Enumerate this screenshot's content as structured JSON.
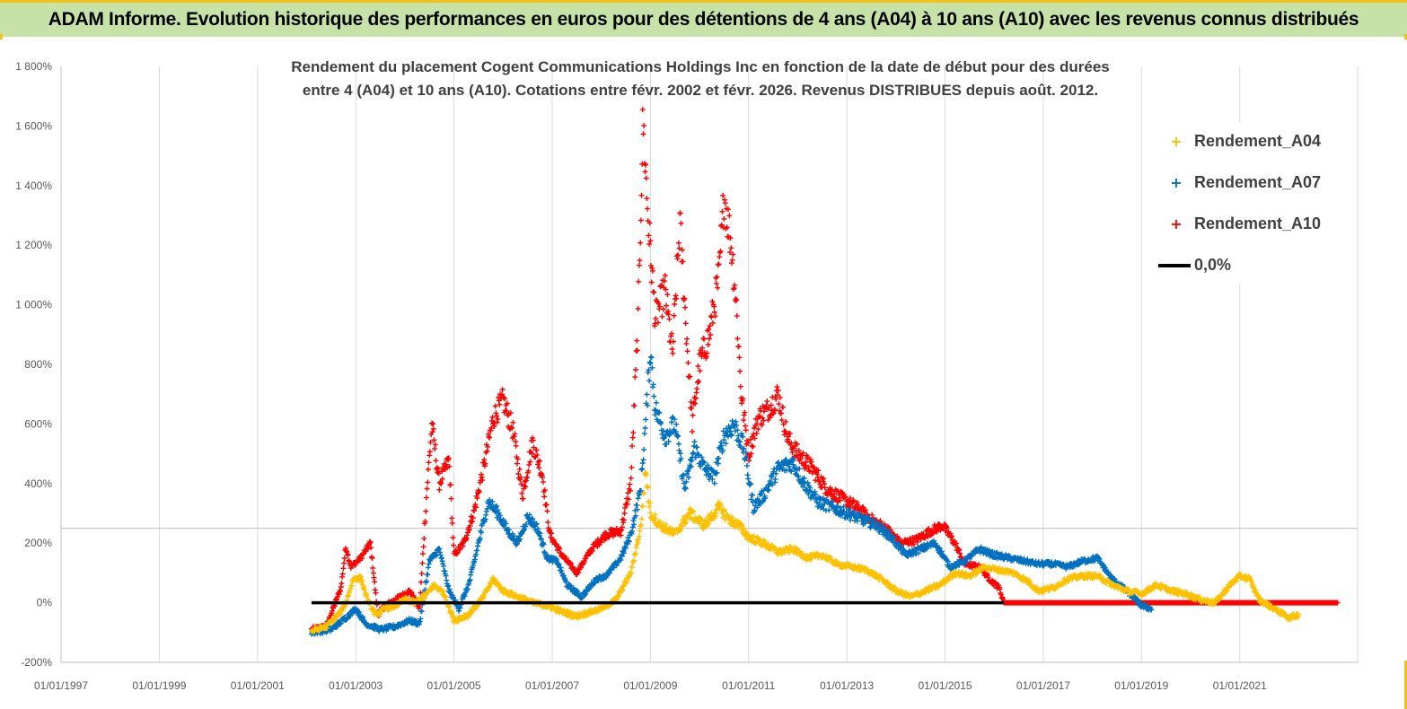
{
  "header": {
    "title": "ADAM Informe. Evolution historique des performances en euros pour des détentions de 4 ans (A04) à 10 ans (A10) avec les revenus connus distribués"
  },
  "colors": {
    "banner_bg": "#c6e2a6",
    "accent": "#f1c21b",
    "a04": "#ffc000",
    "a07": "#0070c0",
    "a10": "#ff0000",
    "zero": "#000000",
    "grid": "#d9d9d9"
  },
  "chart_data": {
    "type": "scatter",
    "title_lines": [
      "Rendement du placement Cogent Communications Holdings Inc en  fonction de la date de début pour des durées",
      "entre 4 (A04) et 10 ans (A10).  Cotations entre févr. 2002 et févr. 2026.  Revenus DISTRIBUES depuis août. 2012."
    ],
    "y_axis": {
      "min": -200,
      "max": 1800,
      "step": 200,
      "tick_labels": [
        "-200%",
        "0%",
        "200%",
        "400%",
        "600%",
        "800%",
        "1 000%",
        "1 200%",
        "1 400%",
        "1 600%",
        "1 800%"
      ]
    },
    "x_axis": {
      "min": 1997,
      "max": 2023.4,
      "tick_values": [
        1997,
        1999,
        2001,
        2003,
        2005,
        2007,
        2009,
        2011,
        2013,
        2015,
        2017,
        2019,
        2021
      ],
      "tick_labels": [
        "01/01/1997",
        "01/01/1999",
        "01/01/2001",
        "01/01/2003",
        "01/01/2005",
        "01/01/2007",
        "01/01/2009",
        "01/01/2011",
        "01/01/2013",
        "01/01/2015",
        "01/01/2017",
        "01/01/2019",
        "01/01/2021"
      ]
    },
    "legend": {
      "position": "top-right",
      "items": [
        {
          "label": "Rendement_A04",
          "marker": "+"
        },
        {
          "label": "Rendement_A07",
          "marker": "+"
        },
        {
          "label": "Rendement_A10",
          "marker": "+"
        },
        {
          "label": "0,0%",
          "marker": "line"
        }
      ]
    },
    "series": [
      {
        "name": "Rendement_A04",
        "x_range": [
          2002.1,
          2022.2
        ],
        "points": [
          [
            2002.1,
            -95
          ],
          [
            2002.4,
            -80
          ],
          [
            2002.7,
            -30
          ],
          [
            2002.8,
            0
          ],
          [
            2002.95,
            80
          ],
          [
            2003.1,
            85
          ],
          [
            2003.25,
            5
          ],
          [
            2003.4,
            -40
          ],
          [
            2003.6,
            -20
          ],
          [
            2003.8,
            -10
          ],
          [
            2004.0,
            10
          ],
          [
            2004.2,
            0
          ],
          [
            2004.4,
            20
          ],
          [
            2004.6,
            60
          ],
          [
            2004.8,
            30
          ],
          [
            2005.0,
            -60
          ],
          [
            2005.3,
            -40
          ],
          [
            2005.6,
            20
          ],
          [
            2005.8,
            80
          ],
          [
            2006.0,
            40
          ],
          [
            2006.3,
            20
          ],
          [
            2006.6,
            0
          ],
          [
            2006.9,
            -10
          ],
          [
            2007.2,
            -30
          ],
          [
            2007.5,
            -45
          ],
          [
            2007.8,
            -30
          ],
          [
            2008.0,
            -20
          ],
          [
            2008.3,
            10
          ],
          [
            2008.6,
            100
          ],
          [
            2008.8,
            250
          ],
          [
            2008.9,
            450
          ],
          [
            2009.0,
            300
          ],
          [
            2009.2,
            260
          ],
          [
            2009.5,
            230
          ],
          [
            2009.8,
            300
          ],
          [
            2010.1,
            260
          ],
          [
            2010.4,
            320
          ],
          [
            2010.6,
            280
          ],
          [
            2010.8,
            260
          ],
          [
            2011.0,
            220
          ],
          [
            2011.3,
            200
          ],
          [
            2011.6,
            170
          ],
          [
            2011.9,
            180
          ],
          [
            2012.2,
            150
          ],
          [
            2012.5,
            160
          ],
          [
            2012.8,
            130
          ],
          [
            2013.1,
            120
          ],
          [
            2013.4,
            110
          ],
          [
            2013.7,
            80
          ],
          [
            2014.0,
            40
          ],
          [
            2014.3,
            20
          ],
          [
            2014.6,
            40
          ],
          [
            2014.9,
            60
          ],
          [
            2015.2,
            100
          ],
          [
            2015.5,
            90
          ],
          [
            2015.8,
            120
          ],
          [
            2016.1,
            110
          ],
          [
            2016.4,
            100
          ],
          [
            2016.7,
            70
          ],
          [
            2016.9,
            40
          ],
          [
            2017.2,
            50
          ],
          [
            2017.5,
            80
          ],
          [
            2017.8,
            90
          ],
          [
            2018.1,
            90
          ],
          [
            2018.4,
            60
          ],
          [
            2018.7,
            40
          ],
          [
            2019.0,
            30
          ],
          [
            2019.3,
            60
          ],
          [
            2019.6,
            40
          ],
          [
            2019.9,
            30
          ],
          [
            2020.2,
            10
          ],
          [
            2020.5,
            0
          ],
          [
            2020.8,
            60
          ],
          [
            2021.0,
            90
          ],
          [
            2021.2,
            80
          ],
          [
            2021.4,
            10
          ],
          [
            2021.7,
            -20
          ],
          [
            2022.0,
            -50
          ],
          [
            2022.2,
            -40
          ]
        ]
      },
      {
        "name": "Rendement_A07",
        "x_range": [
          2002.1,
          2019.2
        ],
        "points": [
          [
            2002.1,
            -100
          ],
          [
            2002.5,
            -90
          ],
          [
            2002.8,
            -50
          ],
          [
            2003.0,
            -20
          ],
          [
            2003.2,
            -70
          ],
          [
            2003.5,
            -90
          ],
          [
            2003.8,
            -80
          ],
          [
            2004.1,
            -60
          ],
          [
            2004.3,
            -70
          ],
          [
            2004.5,
            140
          ],
          [
            2004.7,
            180
          ],
          [
            2004.9,
            40
          ],
          [
            2005.1,
            -20
          ],
          [
            2005.3,
            60
          ],
          [
            2005.5,
            200
          ],
          [
            2005.7,
            340
          ],
          [
            2005.9,
            300
          ],
          [
            2006.1,
            240
          ],
          [
            2006.3,
            200
          ],
          [
            2006.5,
            290
          ],
          [
            2006.7,
            250
          ],
          [
            2006.9,
            150
          ],
          [
            2007.1,
            140
          ],
          [
            2007.3,
            60
          ],
          [
            2007.6,
            20
          ],
          [
            2007.9,
            80
          ],
          [
            2008.1,
            90
          ],
          [
            2008.4,
            150
          ],
          [
            2008.6,
            230
          ],
          [
            2008.8,
            380
          ],
          [
            2008.9,
            600
          ],
          [
            2009.0,
            850
          ],
          [
            2009.1,
            650
          ],
          [
            2009.3,
            560
          ],
          [
            2009.5,
            600
          ],
          [
            2009.7,
            380
          ],
          [
            2009.9,
            520
          ],
          [
            2010.1,
            450
          ],
          [
            2010.3,
            420
          ],
          [
            2010.5,
            560
          ],
          [
            2010.7,
            600
          ],
          [
            2010.9,
            520
          ],
          [
            2011.1,
            320
          ],
          [
            2011.3,
            360
          ],
          [
            2011.6,
            450
          ],
          [
            2011.9,
            470
          ],
          [
            2012.1,
            410
          ],
          [
            2012.4,
            340
          ],
          [
            2012.7,
            320
          ],
          [
            2013.0,
            300
          ],
          [
            2013.3,
            280
          ],
          [
            2013.6,
            260
          ],
          [
            2013.9,
            220
          ],
          [
            2014.2,
            160
          ],
          [
            2014.5,
            180
          ],
          [
            2014.8,
            200
          ],
          [
            2015.1,
            120
          ],
          [
            2015.4,
            140
          ],
          [
            2015.7,
            180
          ],
          [
            2016.0,
            160
          ],
          [
            2016.3,
            150
          ],
          [
            2016.6,
            140
          ],
          [
            2016.9,
            130
          ],
          [
            2017.2,
            130
          ],
          [
            2017.5,
            120
          ],
          [
            2017.8,
            140
          ],
          [
            2018.1,
            150
          ],
          [
            2018.4,
            80
          ],
          [
            2018.7,
            40
          ],
          [
            2019.0,
            -10
          ],
          [
            2019.2,
            -20
          ]
        ]
      },
      {
        "name": "Rendement_A10",
        "x_range": [
          2002.1,
          2023.0
        ],
        "points": [
          [
            2002.1,
            -90
          ],
          [
            2002.4,
            -80
          ],
          [
            2002.7,
            50
          ],
          [
            2002.8,
            190
          ],
          [
            2002.9,
            120
          ],
          [
            2003.1,
            150
          ],
          [
            2003.3,
            200
          ],
          [
            2003.45,
            -40
          ],
          [
            2003.6,
            -10
          ],
          [
            2003.9,
            20
          ],
          [
            2004.1,
            40
          ],
          [
            2004.3,
            -20
          ],
          [
            2004.45,
            380
          ],
          [
            2004.55,
            600
          ],
          [
            2004.7,
            400
          ],
          [
            2004.9,
            480
          ],
          [
            2005.0,
            160
          ],
          [
            2005.2,
            200
          ],
          [
            2005.4,
            300
          ],
          [
            2005.6,
            450
          ],
          [
            2005.8,
            620
          ],
          [
            2006.0,
            680
          ],
          [
            2006.2,
            580
          ],
          [
            2006.4,
            360
          ],
          [
            2006.6,
            540
          ],
          [
            2006.8,
            430
          ],
          [
            2006.95,
            230
          ],
          [
            2007.2,
            160
          ],
          [
            2007.5,
            100
          ],
          [
            2007.8,
            180
          ],
          [
            2008.1,
            230
          ],
          [
            2008.4,
            240
          ],
          [
            2008.6,
            400
          ],
          [
            2008.75,
            950
          ],
          [
            2008.85,
            1620
          ],
          [
            2008.95,
            1300
          ],
          [
            2009.1,
            950
          ],
          [
            2009.3,
            1050
          ],
          [
            2009.45,
            830
          ],
          [
            2009.6,
            1280
          ],
          [
            2009.7,
            1000
          ],
          [
            2009.85,
            600
          ],
          [
            2010.0,
            800
          ],
          [
            2010.2,
            900
          ],
          [
            2010.4,
            1100
          ],
          [
            2010.5,
            1370
          ],
          [
            2010.65,
            1200
          ],
          [
            2010.75,
            1000
          ],
          [
            2010.85,
            700
          ],
          [
            2011.0,
            500
          ],
          [
            2011.2,
            620
          ],
          [
            2011.4,
            650
          ],
          [
            2011.6,
            700
          ],
          [
            2011.8,
            550
          ],
          [
            2012.0,
            500
          ],
          [
            2012.3,
            450
          ],
          [
            2012.6,
            380
          ],
          [
            2012.9,
            350
          ],
          [
            2013.2,
            320
          ],
          [
            2013.5,
            280
          ],
          [
            2013.8,
            250
          ],
          [
            2014.1,
            200
          ],
          [
            2014.4,
            210
          ],
          [
            2014.7,
            240
          ],
          [
            2014.95,
            260
          ],
          [
            2015.2,
            200
          ],
          [
            2015.4,
            130
          ],
          [
            2015.7,
            120
          ],
          [
            2015.9,
            80
          ],
          [
            2016.1,
            50
          ],
          [
            2016.2,
            0
          ],
          [
            2023.0,
            0
          ]
        ]
      },
      {
        "name": "0,0%",
        "type": "line",
        "points": [
          [
            2002.1,
            0
          ],
          [
            2016.2,
            0
          ]
        ]
      }
    ]
  }
}
